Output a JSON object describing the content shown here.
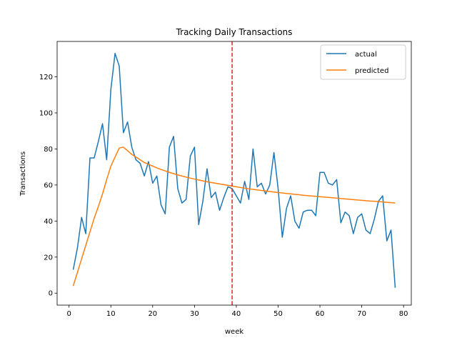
{
  "chart_data": {
    "type": "line",
    "title": "Tracking Daily Transactions",
    "xlabel": "week",
    "ylabel": "Transactions",
    "xlim": [
      -2.85,
      81.85
    ],
    "ylim": [
      -6.65,
      139.65
    ],
    "xticks": [
      0,
      10,
      20,
      30,
      40,
      50,
      60,
      70,
      80
    ],
    "yticks": [
      0,
      20,
      40,
      60,
      80,
      100,
      120
    ],
    "grid": false,
    "legend_position": "top-right",
    "vline": {
      "x": 39,
      "color": "#d62728",
      "style": "dashed"
    },
    "series": [
      {
        "name": "actual",
        "color": "#1f77b4",
        "x": [
          1,
          2,
          3,
          4,
          5,
          6,
          7,
          8,
          9,
          10,
          11,
          12,
          13,
          14,
          15,
          16,
          17,
          18,
          19,
          20,
          21,
          22,
          23,
          24,
          25,
          26,
          27,
          28,
          29,
          30,
          31,
          32,
          33,
          34,
          35,
          36,
          37,
          38,
          39,
          40,
          41,
          42,
          43,
          44,
          45,
          46,
          47,
          48,
          49,
          50,
          51,
          52,
          53,
          54,
          55,
          56,
          57,
          58,
          59,
          60,
          61,
          62,
          63,
          64,
          65,
          66,
          67,
          68,
          69,
          70,
          71,
          72,
          73,
          74,
          75,
          76,
          77,
          78
        ],
        "values": [
          13,
          25,
          42,
          33,
          75,
          75,
          84,
          94,
          74,
          113,
          133,
          126,
          89,
          95,
          81,
          74,
          72,
          65,
          73,
          61,
          65,
          49,
          44,
          81,
          87,
          58,
          50,
          52,
          76,
          81,
          38,
          51,
          69,
          53,
          56,
          46,
          53,
          59,
          58,
          54,
          50,
          62,
          52,
          80,
          59,
          61,
          55,
          60,
          78,
          58,
          31,
          47,
          54,
          40,
          36,
          45,
          46,
          46,
          43,
          67,
          67,
          61,
          60,
          63,
          39,
          45,
          43,
          33,
          42,
          44,
          35,
          33,
          41,
          51,
          54,
          29,
          35,
          3
        ]
      },
      {
        "name": "predicted",
        "color": "#ff7f0e",
        "x": [
          1,
          2,
          3,
          4,
          5,
          6,
          7,
          8,
          9,
          10,
          11,
          12,
          13,
          14,
          15,
          16,
          17,
          18,
          19,
          20,
          21,
          22,
          23,
          24,
          25,
          26,
          27,
          28,
          29,
          30,
          31,
          32,
          33,
          34,
          35,
          36,
          37,
          38,
          39,
          40,
          41,
          42,
          43,
          44,
          45,
          46,
          47,
          48,
          49,
          50,
          51,
          52,
          53,
          54,
          55,
          56,
          57,
          58,
          59,
          60,
          61,
          62,
          63,
          64,
          65,
          66,
          67,
          68,
          69,
          70,
          71,
          72,
          73,
          74,
          75,
          76,
          77,
          78
        ],
        "values": [
          4.0,
          11.5,
          19.0,
          26.5,
          34.0,
          41.5,
          48.0,
          55.0,
          63.0,
          70.5,
          75.5,
          80.5,
          81.0,
          79.0,
          77.0,
          75.5,
          74.0,
          72.5,
          71.5,
          70.5,
          69.5,
          68.6,
          67.8,
          67.0,
          66.3,
          65.6,
          65.0,
          64.4,
          63.8,
          63.3,
          62.8,
          62.3,
          61.8,
          61.4,
          61.0,
          60.6,
          60.2,
          59.8,
          59.4,
          59.0,
          58.6,
          58.2,
          57.9,
          57.6,
          57.3,
          57.0,
          56.7,
          56.4,
          56.1,
          55.8,
          55.6,
          55.3,
          55.1,
          54.8,
          54.6,
          54.3,
          54.1,
          53.9,
          53.7,
          53.5,
          53.3,
          53.1,
          52.9,
          52.7,
          52.5,
          52.3,
          52.1,
          51.9,
          51.7,
          51.5,
          51.3,
          51.1,
          51.0,
          50.8,
          50.6,
          50.4,
          50.2,
          50.0
        ]
      }
    ]
  }
}
